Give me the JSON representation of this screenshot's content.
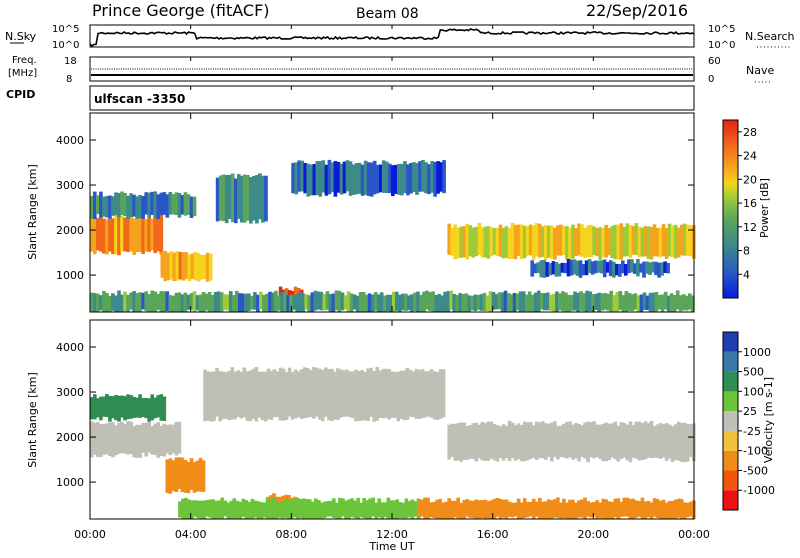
{
  "header": {
    "station": "Prince George (fitACF)",
    "beam": "Beam 08",
    "date": "22/Sep/2016"
  },
  "noise_panel": {
    "left_label": "N.Sky",
    "left_ticks": [
      "10^5",
      "10^0"
    ],
    "right_label": "N.Search",
    "right_ticks": [
      "10^5",
      "10^0"
    ]
  },
  "freq_panel": {
    "left_label_1": "Freq.",
    "left_label_2": "[MHz]",
    "left_ticks": [
      "18",
      "8"
    ],
    "right_label": "Nave",
    "right_ticks": [
      "60",
      "0"
    ]
  },
  "cpid": {
    "label": "CPID",
    "value": "ulfscan  -3350"
  },
  "colors": {
    "power": [
      "#0a1bd8",
      "#2a57c8",
      "#3d8a8a",
      "#5aa55a",
      "#9ccb3a",
      "#f5d41d",
      "#f5a21d",
      "#f2681a",
      "#e42313"
    ],
    "velocity": [
      "#ee1010",
      "#f2560d",
      "#f08c17",
      "#f4c13c",
      "#bfbfb5",
      "#6cc43b",
      "#2f8d53",
      "#3a78a8",
      "#1d3fb0"
    ]
  },
  "chart_data": [
    {
      "type": "heatmap",
      "title": "",
      "xlabel": "",
      "ylabel": "Slant Range [km]",
      "x_range": [
        "00:00",
        "24:00"
      ],
      "ylim": [
        180,
        4600
      ],
      "y_ticks": [
        1000,
        2000,
        3000,
        4000
      ],
      "colorbar": {
        "label": "Power [dB]",
        "ticks": [
          4,
          8,
          12,
          16,
          20,
          24,
          28
        ],
        "range": [
          0,
          30
        ]
      },
      "bands": [
        {
          "t0": 0.0,
          "t1": 2.8,
          "r0": 1500,
          "r1": 2300,
          "value": 22
        },
        {
          "t0": 0.0,
          "t1": 4.2,
          "r0": 2300,
          "r1": 2800,
          "value": 8
        },
        {
          "t0": 2.8,
          "t1": 4.8,
          "r0": 900,
          "r1": 1500,
          "value": 20
        },
        {
          "t0": 5.0,
          "t1": 7.0,
          "r0": 2200,
          "r1": 3200,
          "value": 8
        },
        {
          "t0": 7.5,
          "t1": 8.4,
          "r0": 400,
          "r1": 700,
          "value": 28
        },
        {
          "t0": 8.0,
          "t1": 14.0,
          "r0": 2800,
          "r1": 3500,
          "value": 6
        },
        {
          "t0": 14.2,
          "t1": 24.0,
          "r0": 1400,
          "r1": 2100,
          "value": 18
        },
        {
          "t0": 17.5,
          "t1": 23.0,
          "r0": 1000,
          "r1": 1300,
          "value": 6
        },
        {
          "t0": 0.0,
          "t1": 24.0,
          "r0": 180,
          "r1": 600,
          "value": 10
        }
      ]
    },
    {
      "type": "heatmap",
      "title": "",
      "xlabel": "Time UT",
      "ylabel": "Slant Range [km]",
      "x_range": [
        "00:00",
        "24:00"
      ],
      "x_ticks": [
        "00:00",
        "04:00",
        "08:00",
        "12:00",
        "16:00",
        "20:00",
        "00:00"
      ],
      "ylim": [
        180,
        4600
      ],
      "y_ticks": [
        1000,
        2000,
        3000,
        4000
      ],
      "colorbar": {
        "label": "Velocity [m s-1]",
        "ticks": [
          -1000,
          -500,
          -100,
          -25,
          25,
          100,
          500,
          1000
        ]
      },
      "bands": [
        {
          "t0": 0.0,
          "t1": 3.5,
          "r0": 1600,
          "r1": 2300,
          "value": 0
        },
        {
          "t0": 0.0,
          "t1": 3.0,
          "r0": 2400,
          "r1": 2900,
          "value": 200
        },
        {
          "t0": 3.0,
          "t1": 4.5,
          "r0": 800,
          "r1": 1500,
          "value": -300
        },
        {
          "t0": 7.0,
          "t1": 8.2,
          "r0": 500,
          "r1": 700,
          "value": -400
        },
        {
          "t0": 4.5,
          "t1": 14.0,
          "r0": 2400,
          "r1": 3500,
          "value": 0
        },
        {
          "t0": 14.2,
          "t1": 24.0,
          "r0": 1500,
          "r1": 2300,
          "value": 0
        },
        {
          "t0": 3.5,
          "t1": 13.0,
          "r0": 180,
          "r1": 600,
          "value": 50
        },
        {
          "t0": 13.0,
          "t1": 24.0,
          "r0": 180,
          "r1": 600,
          "value": -150
        }
      ]
    }
  ]
}
